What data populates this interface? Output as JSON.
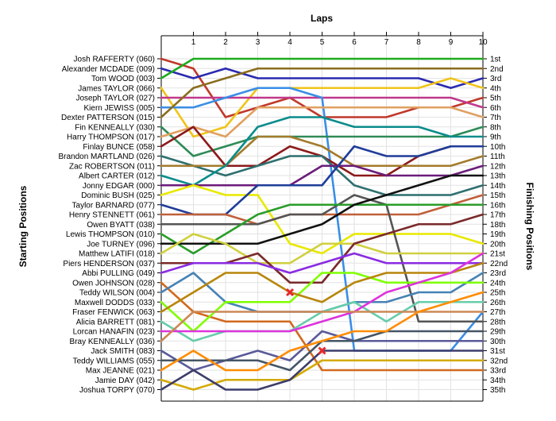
{
  "chart_data": {
    "type": "line",
    "title": "Laps",
    "ylabel_left": "Starting Positions",
    "ylabel_right": "Finishing Positions",
    "x": [
      0,
      1,
      2,
      3,
      4,
      5,
      6,
      7,
      8,
      9,
      10
    ],
    "x_tick_labels": [
      "1",
      "2",
      "3",
      "4",
      "5",
      "6",
      "7",
      "8",
      "9",
      "10"
    ],
    "drivers": [
      "Josh RAFFERTY (060)",
      "Alexander MCDADE (009)",
      "Tom WOOD (003)",
      "James TAYLOR (066)",
      "Joseph TAYLOR (027)",
      "Kiern JEWISS (005)",
      "Dexter PATTERSON (015)",
      "Fin KENNEALLY (030)",
      "Harry THOMPSON (017)",
      "Finlay BUNCE (058)",
      "Brandon MARTLAND (026)",
      "Zac ROBERTSON (011)",
      "Albert CARTER (012)",
      "Jonny EDGAR (000)",
      "Dominic BUSH (025)",
      "Taylor BARNARD (077)",
      "Henry STENNETT (061)",
      "Owen BYATT (038)",
      "Lewis THOMPSON (010)",
      "Joe TURNEY (096)",
      "Matthew LATIFI (018)",
      "Piers HENDERSON (037)",
      "Abbi PULLING (049)",
      "Owen JOHNSON (028)",
      "Teddy WILSON (004)",
      "Maxwell DODDS (033)",
      "Fraser FENWICK (063)",
      "Alicia BARRETT (081)",
      "Lorcan HANAFIN (023)",
      "Bray KENNEALLY (036)",
      "Jack SMITH (083)",
      "Teddy WILLIAMS (055)",
      "Max JEANNE (021)",
      "Jamie DAY (042)",
      "Joshua TORPY (070)"
    ],
    "finishing_labels": [
      "1st",
      "2nd",
      "3rd",
      "4th",
      "5th",
      "6th",
      "7th",
      "8th",
      "9th",
      "10th",
      "11th",
      "12th",
      "13th",
      "14th",
      "15th",
      "16th",
      "17th",
      "18th",
      "19th",
      "20th",
      "21st",
      "22nd",
      "23rd",
      "24th",
      "25th",
      "26th",
      "27th",
      "28th",
      "29th",
      "30th",
      "31st",
      "32nd",
      "33rd",
      "34th",
      "35th"
    ],
    "series": [
      {
        "color": "#c0392b",
        "values": [
          1,
          2,
          7,
          6,
          5,
          7,
          7,
          7,
          6,
          6,
          5
        ]
      },
      {
        "color": "#2a2ab0",
        "values": [
          2,
          3,
          2,
          3,
          3,
          3,
          3,
          3,
          3,
          4,
          3
        ]
      },
      {
        "color": "#1faa1f",
        "values": [
          3,
          1,
          1,
          1,
          1,
          1,
          1,
          1,
          1,
          1,
          1
        ]
      },
      {
        "color": "#f0c419",
        "values": [
          4,
          9,
          8,
          4,
          4,
          4,
          4,
          4,
          4,
          3,
          4
        ]
      },
      {
        "color": "#c0388c",
        "values": [
          5,
          5,
          5,
          5,
          5,
          5,
          5,
          5,
          5,
          5,
          6
        ]
      },
      {
        "color": "#3a8ee6",
        "values": [
          6,
          6,
          5,
          4,
          4,
          5,
          31,
          31,
          31,
          31,
          27
        ]
      },
      {
        "color": "#8a6d1f",
        "values": [
          7,
          4,
          3,
          2,
          2,
          2,
          2,
          2,
          2,
          2,
          2
        ]
      },
      {
        "color": "#2e8b57",
        "values": [
          8,
          11,
          10,
          9,
          9,
          9,
          9,
          9,
          9,
          9,
          8
        ]
      },
      {
        "color": "#e0a060",
        "values": [
          9,
          8,
          9,
          6,
          6,
          6,
          6,
          6,
          6,
          6,
          7
        ]
      },
      {
        "color": "#8b1a1a",
        "values": [
          10,
          8,
          12,
          12,
          10,
          11,
          13,
          13,
          11,
          10,
          10
        ]
      },
      {
        "color": "#2f6f6f",
        "values": [
          11,
          12,
          13,
          12,
          11,
          11,
          14,
          15,
          15,
          15,
          14
        ]
      },
      {
        "color": "#a37b2c",
        "values": [
          12,
          12,
          12,
          9,
          9,
          10,
          12,
          12,
          12,
          12,
          11
        ]
      },
      {
        "color": "#0b8c8c",
        "values": [
          13,
          14,
          12,
          8,
          7,
          7,
          8,
          8,
          8,
          9,
          9
        ]
      },
      {
        "color": "#6b1c7a",
        "values": [
          14,
          14,
          14,
          14,
          14,
          12,
          12,
          13,
          13,
          13,
          12
        ]
      },
      {
        "color": "#e8e800",
        "values": [
          15,
          14,
          15,
          15,
          20,
          21,
          19,
          19,
          19,
          19,
          20
        ]
      },
      {
        "color": "#1f3d99",
        "values": [
          16,
          17,
          17,
          14,
          14,
          14,
          10,
          11,
          11,
          10,
          10
        ]
      },
      {
        "color": "#c0603a",
        "values": [
          17,
          17,
          17,
          18,
          17,
          17,
          17,
          17,
          17,
          16,
          15
        ]
      },
      {
        "color": "#555555",
        "values": [
          18,
          18,
          18,
          18,
          17,
          17,
          15,
          16,
          28,
          28,
          28
        ]
      },
      {
        "color": "#2a9d2a",
        "values": [
          19,
          21,
          19,
          17,
          16,
          16,
          16,
          16,
          16,
          16,
          16
        ]
      },
      {
        "color": "#111111",
        "values": [
          20,
          20,
          20,
          20,
          19,
          18,
          16,
          15,
          14,
          13,
          13
        ]
      },
      {
        "color": "#d0d040",
        "values": [
          21,
          19,
          20,
          22,
          22,
          20,
          20,
          21,
          21,
          21,
          21
        ]
      },
      {
        "color": "#7a2a2a",
        "values": [
          22,
          22,
          22,
          21,
          24,
          24,
          20,
          19,
          18,
          18,
          17
        ]
      },
      {
        "color": "#8a2be2",
        "values": [
          23,
          22,
          22,
          22,
          23,
          22,
          21,
          22,
          22,
          22,
          22
        ]
      },
      {
        "color": "#d2691e",
        "values": [
          24,
          27,
          28,
          28,
          28,
          33,
          33,
          33,
          33,
          33,
          33
        ]
      },
      {
        "color": "#4682b4",
        "values": [
          25,
          23,
          26,
          27,
          27,
          27,
          26,
          26,
          25,
          25,
          23
        ]
      },
      {
        "color": "#7fff00",
        "values": [
          26,
          29,
          26,
          26,
          26,
          23,
          23,
          24,
          24,
          24,
          24
        ]
      },
      {
        "color": "#b8860b",
        "values": [
          27,
          25,
          23,
          23,
          25,
          26,
          24,
          23,
          23,
          23,
          22
        ]
      },
      {
        "color": "#66cdaa",
        "values": [
          28,
          30,
          29,
          29,
          29,
          27,
          26,
          28,
          26,
          26,
          26
        ]
      },
      {
        "color": "#dd33dd",
        "values": [
          29,
          29,
          29,
          29,
          29,
          28,
          27,
          25,
          24,
          23,
          21
        ]
      },
      {
        "color": "#cc8855",
        "values": [
          30,
          27,
          27,
          27,
          27,
          27,
          27,
          27,
          27,
          27,
          27
        ]
      },
      {
        "color": "#5a5a9a",
        "values": [
          31,
          33,
          32,
          31,
          32,
          29,
          30,
          30,
          30,
          30,
          30
        ]
      },
      {
        "color": "#445566",
        "values": [
          32,
          32,
          32,
          32,
          33,
          30,
          30,
          29,
          29,
          29,
          29
        ]
      },
      {
        "color": "#ff8c00",
        "values": [
          33,
          31,
          33,
          33,
          31,
          30,
          29,
          29,
          27,
          26,
          25
        ]
      },
      {
        "color": "#d4aa00",
        "values": [
          34,
          35,
          34,
          34,
          34,
          32,
          32,
          32,
          32,
          32,
          32
        ]
      },
      {
        "color": "#3d3d6b",
        "values": [
          35,
          33,
          35,
          35,
          34,
          31,
          31,
          31,
          31,
          31,
          31
        ]
      }
    ],
    "retired_markers": [
      {
        "lap": 4,
        "position": 25,
        "color": "#e8282b"
      },
      {
        "lap": 5,
        "position": 31,
        "color": "#e8282b"
      }
    ],
    "grid": true
  }
}
